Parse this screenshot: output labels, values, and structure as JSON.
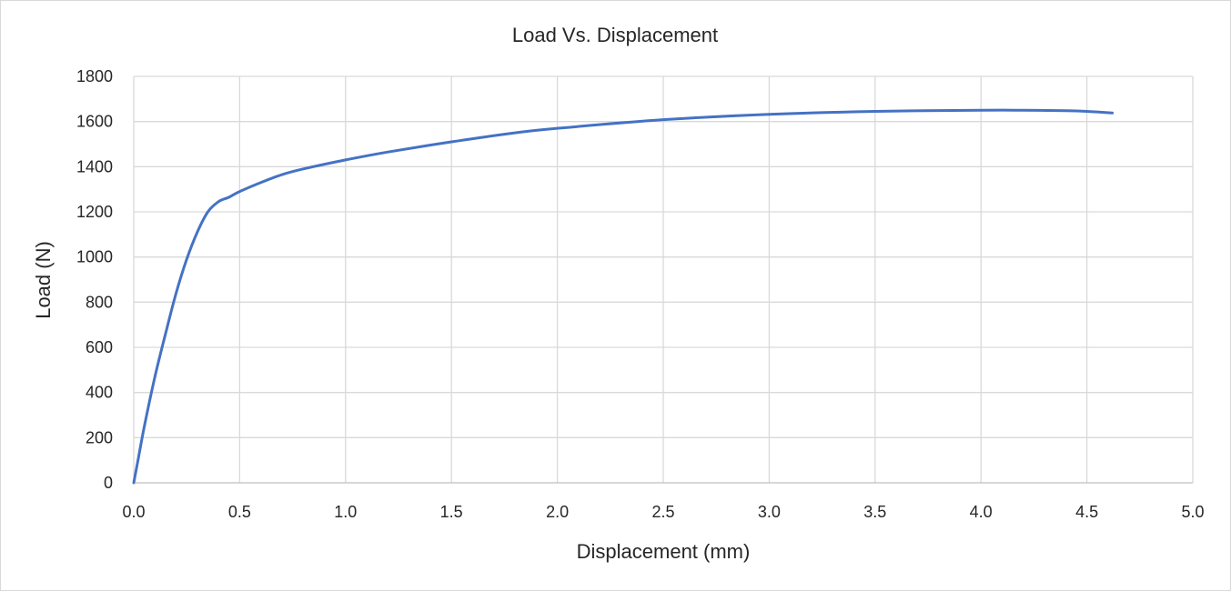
{
  "chart_data": {
    "type": "line",
    "title": "Load Vs. Displacement",
    "xlabel": "Displacement (mm)",
    "ylabel": "Load (N)",
    "xlim": [
      0,
      5
    ],
    "ylim": [
      0,
      1800
    ],
    "x_ticks": [
      "0.0",
      "0.5",
      "1.0",
      "1.5",
      "2.0",
      "2.5",
      "3.0",
      "3.5",
      "4.0",
      "4.5",
      "5.0"
    ],
    "y_ticks": [
      "0",
      "200",
      "400",
      "600",
      "800",
      "1000",
      "1200",
      "1400",
      "1600",
      "1800"
    ],
    "grid": true,
    "legend": "none",
    "series": [
      {
        "color": "#4472c4",
        "x": [
          0,
          0.02,
          0.05,
          0.1,
          0.15,
          0.2,
          0.25,
          0.3,
          0.35,
          0.4,
          0.45,
          0.5,
          0.6,
          0.7,
          0.8,
          1.0,
          1.2,
          1.5,
          1.8,
          2.0,
          2.5,
          3.0,
          3.5,
          4.0,
          4.2,
          4.4,
          4.5,
          4.62
        ],
        "y": [
          0,
          100,
          250,
          470,
          660,
          840,
          990,
          1110,
          1200,
          1245,
          1265,
          1290,
          1330,
          1365,
          1390,
          1430,
          1465,
          1510,
          1550,
          1570,
          1608,
          1632,
          1645,
          1650,
          1650,
          1648,
          1645,
          1638
        ]
      }
    ]
  }
}
